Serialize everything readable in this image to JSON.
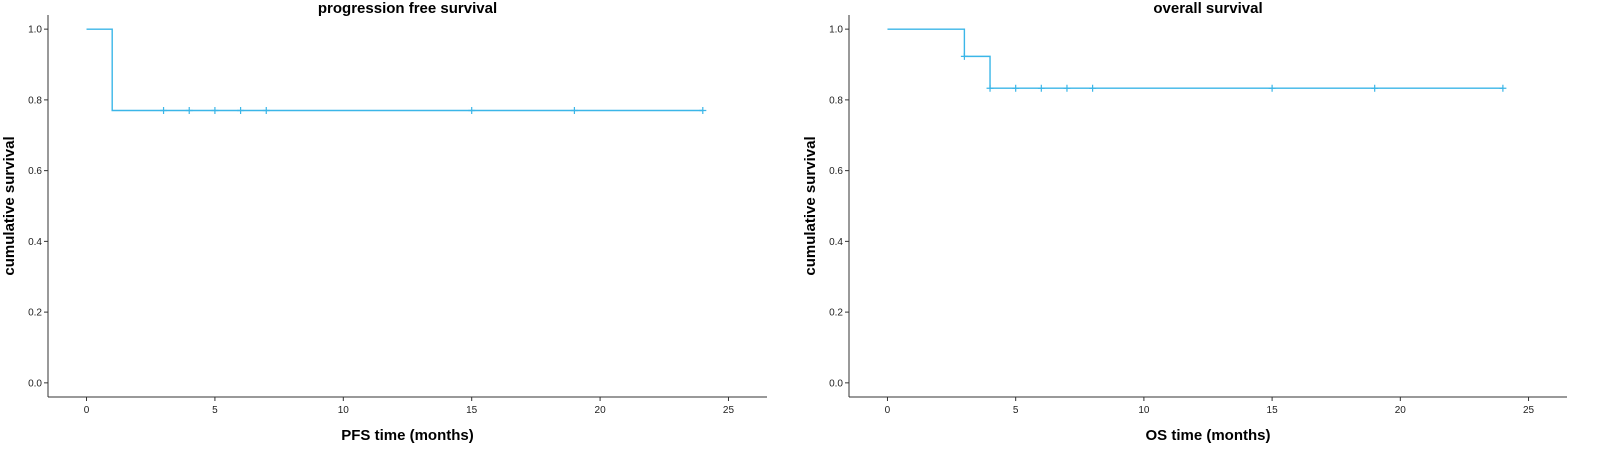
{
  "chart_data": [
    {
      "type": "line",
      "subtype": "kaplan-meier",
      "title": "progression free survival",
      "xlabel": "PFS time (months)",
      "ylabel": "cumulative survival",
      "xlim": [
        -1.5,
        26.5
      ],
      "ylim": [
        -0.04,
        1.04
      ],
      "xticks": [
        0,
        5,
        10,
        15,
        20,
        25
      ],
      "yticks": [
        0.0,
        0.2,
        0.4,
        0.6,
        0.8,
        1.0
      ],
      "xtick_labels": [
        "0",
        "5",
        "10",
        "15",
        "20",
        "25"
      ],
      "ytick_labels": [
        "0.0",
        "0.2",
        "0.4",
        "0.6",
        "0.8",
        "1.0"
      ],
      "color": "#3bb6e8",
      "steps": [
        {
          "x": 0,
          "y": 1.0
        },
        {
          "x": 1,
          "y": 0.77
        },
        {
          "x": 24,
          "y": 0.77
        }
      ],
      "censored": [
        {
          "x": 3,
          "y": 0.77
        },
        {
          "x": 4,
          "y": 0.77
        },
        {
          "x": 5,
          "y": 0.77
        },
        {
          "x": 6,
          "y": 0.77
        },
        {
          "x": 7,
          "y": 0.77
        },
        {
          "x": 15,
          "y": 0.77
        },
        {
          "x": 19,
          "y": 0.77
        },
        {
          "x": 24,
          "y": 0.77
        }
      ],
      "grid": false
    },
    {
      "type": "line",
      "subtype": "kaplan-meier",
      "title": "overall survival",
      "xlabel": "OS time (months)",
      "ylabel": "cumulative survival",
      "xlim": [
        -1.5,
        26.5
      ],
      "ylim": [
        -0.04,
        1.04
      ],
      "xticks": [
        0,
        5,
        10,
        15,
        20,
        25
      ],
      "yticks": [
        0.0,
        0.2,
        0.4,
        0.6,
        0.8,
        1.0
      ],
      "xtick_labels": [
        "0",
        "5",
        "10",
        "15",
        "20",
        "25"
      ],
      "ytick_labels": [
        "0.0",
        "0.2",
        "0.4",
        "0.6",
        "0.8",
        "1.0"
      ],
      "color": "#3bb6e8",
      "steps": [
        {
          "x": 0,
          "y": 1.0
        },
        {
          "x": 3,
          "y": 0.923
        },
        {
          "x": 4,
          "y": 0.833
        },
        {
          "x": 24,
          "y": 0.833
        }
      ],
      "censored": [
        {
          "x": 3,
          "y": 0.923
        },
        {
          "x": 4,
          "y": 0.833
        },
        {
          "x": 5,
          "y": 0.833
        },
        {
          "x": 6,
          "y": 0.833
        },
        {
          "x": 7,
          "y": 0.833
        },
        {
          "x": 8,
          "y": 0.833
        },
        {
          "x": 15,
          "y": 0.833
        },
        {
          "x": 19,
          "y": 0.833
        },
        {
          "x": 24,
          "y": 0.833
        }
      ],
      "grid": false
    }
  ]
}
